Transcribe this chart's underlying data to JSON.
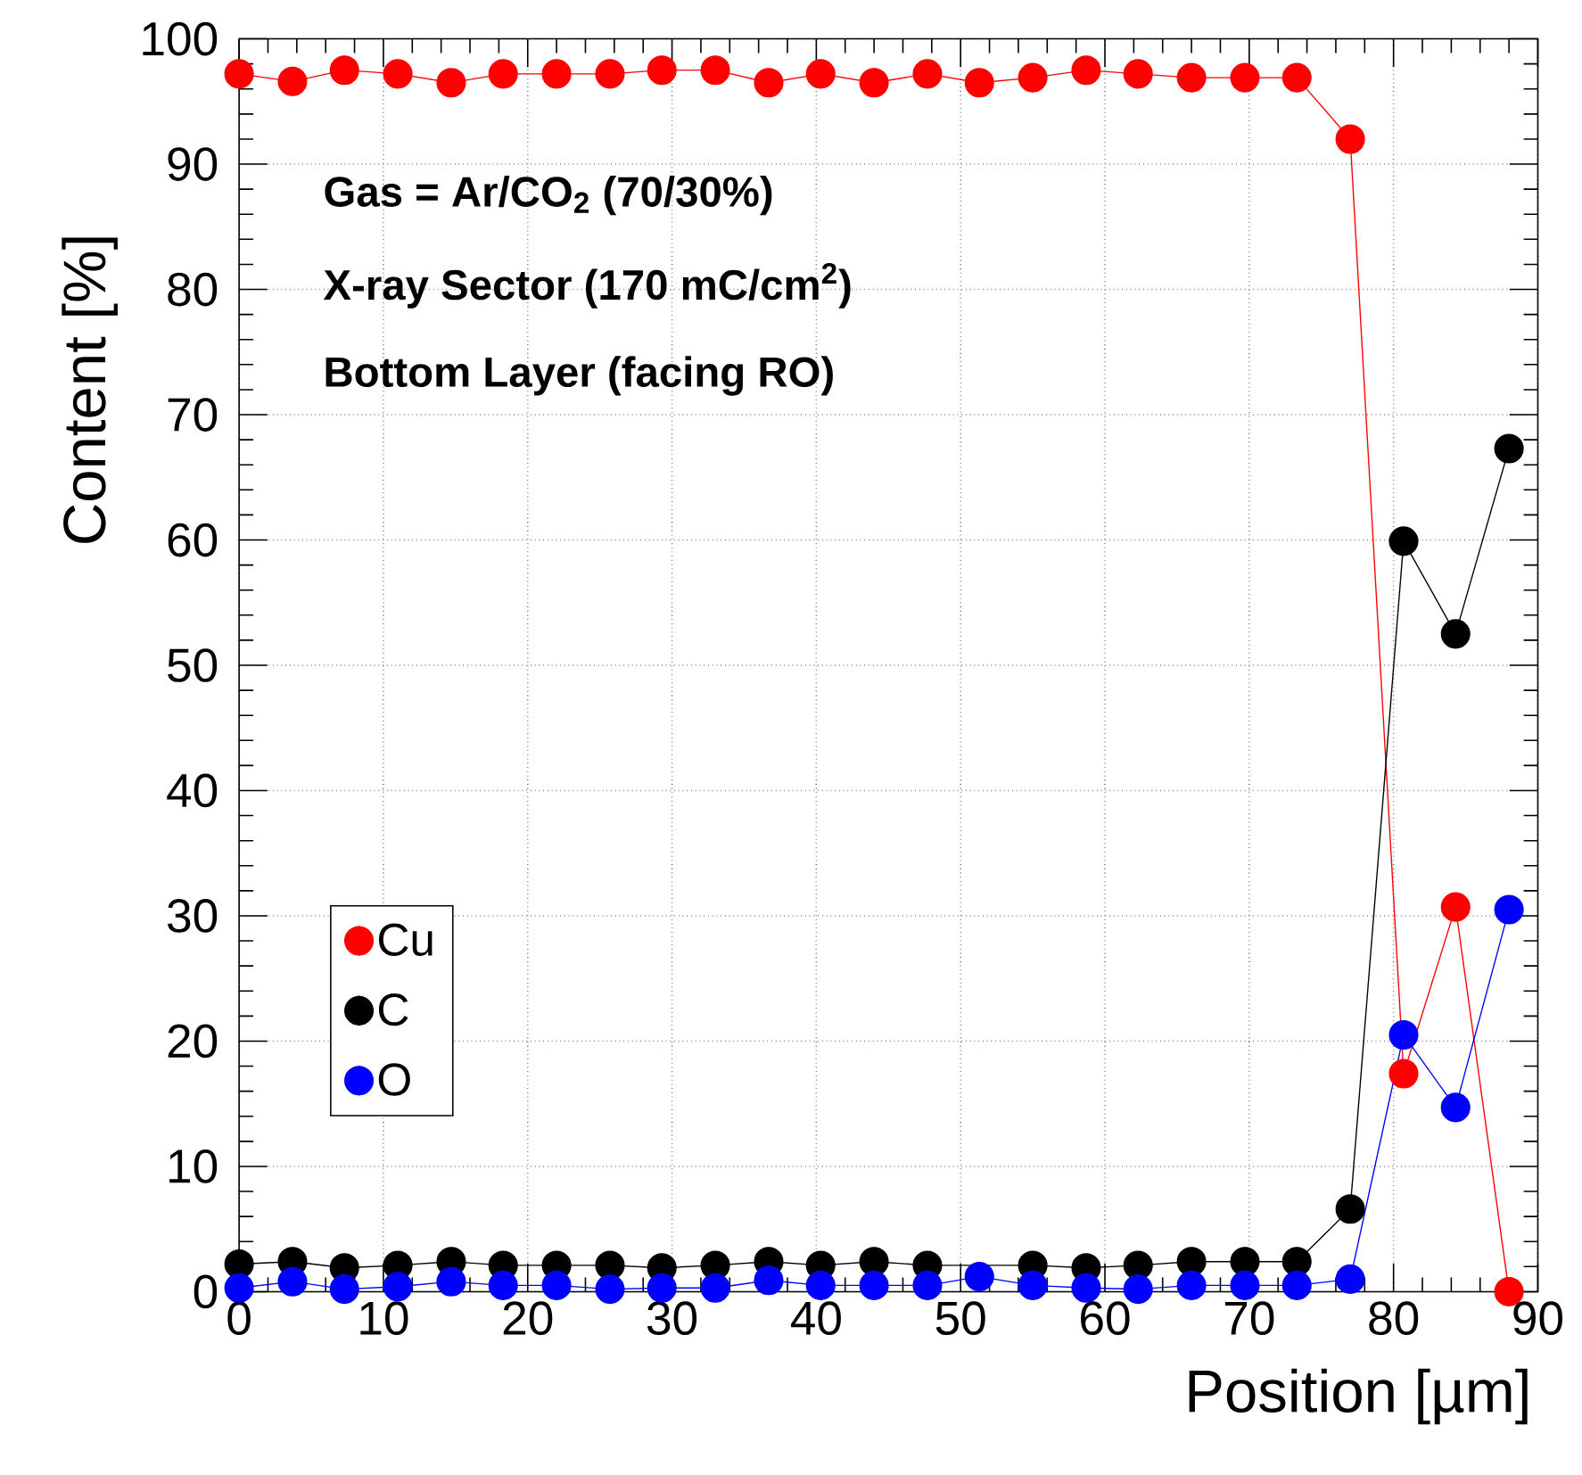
{
  "chart_data": {
    "type": "line",
    "xlabel": "Position [µm]",
    "ylabel": "Content [%]",
    "annotations": [
      "Gas = Ar/CO$_{2}$ (70/30%)",
      "X-ray Sector (170 mC/cm$^{2}$)",
      "Bottom Layer (facing RO)"
    ],
    "x": [
      0,
      3.7,
      7.3,
      11,
      14.7,
      18.3,
      22,
      25.7,
      29.3,
      33,
      36.7,
      40.3,
      44,
      47.7,
      51.3,
      55,
      58.7,
      62.3,
      66,
      69.7,
      73.3,
      77,
      80.7,
      84.3,
      88
    ],
    "series": [
      {
        "name": "Cu",
        "color": "#ff0000",
        "values": [
          97.2,
          96.6,
          97.5,
          97.2,
          96.5,
          97.2,
          97.2,
          97.2,
          97.5,
          97.5,
          96.5,
          97.2,
          96.5,
          97.2,
          96.5,
          96.9,
          97.5,
          97.2,
          96.9,
          96.9,
          96.9,
          92.0,
          17.4,
          30.7,
          0
        ]
      },
      {
        "name": "C",
        "color": "#000000",
        "values": [
          2.2,
          2.4,
          1.9,
          2.1,
          2.4,
          2.1,
          2.1,
          2.1,
          1.9,
          2.1,
          2.4,
          2.1,
          2.4,
          2.1,
          null,
          2.1,
          1.9,
          2.1,
          2.4,
          2.4,
          2.4,
          6.6,
          59.9,
          52.5,
          67.3
        ]
      },
      {
        "name": "O",
        "color": "#0000ff",
        "values": [
          0.3,
          0.8,
          0.2,
          0.4,
          0.8,
          0.5,
          0.5,
          0.2,
          0.3,
          0.3,
          0.9,
          0.5,
          0.5,
          0.5,
          1.2,
          0.5,
          0.3,
          0.2,
          0.5,
          0.5,
          0.5,
          1.0,
          20.5,
          14.7,
          30.5
        ]
      }
    ],
    "xlim": [
      0,
      90
    ],
    "xticks": [
      0,
      10,
      20,
      30,
      40,
      50,
      60,
      70,
      80,
      90
    ],
    "ylim": [
      0,
      100
    ],
    "yticks": [
      0,
      10,
      20,
      30,
      40,
      50,
      60,
      70,
      80,
      90,
      100
    ],
    "grid": true,
    "legend": "bottom left",
    "marker": "circle",
    "line_style": "solid"
  }
}
